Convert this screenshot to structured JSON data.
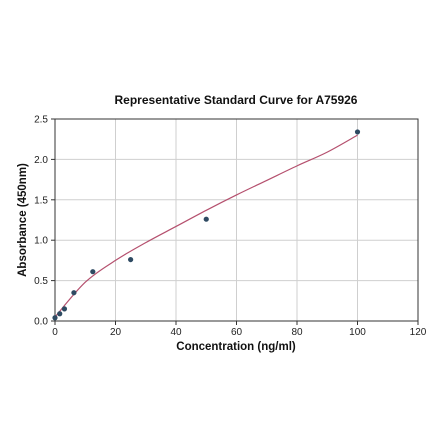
{
  "chart_data": {
    "type": "scatter",
    "title": "Representative Standard Curve for A75926",
    "xlabel": "Concentration (ng/ml)",
    "ylabel": "Absorbance (450nm)",
    "xlim": [
      0,
      120
    ],
    "ylim": [
      0,
      2.5
    ],
    "xticks": [
      "0",
      "20",
      "40",
      "60",
      "80",
      "100",
      "120"
    ],
    "yticks": [
      "0.0",
      "0.5",
      "1.0",
      "1.5",
      "2.0",
      "2.5"
    ],
    "grid": true,
    "legend": "none",
    "series": [
      {
        "kind": "points",
        "color": "#2e4a62",
        "x": [
          0,
          1.563,
          3.125,
          6.25,
          12.5,
          25,
          50,
          100
        ],
        "y": [
          0.04,
          0.09,
          0.15,
          0.35,
          0.61,
          0.76,
          1.26,
          2.34
        ]
      },
      {
        "kind": "fit-curve",
        "color": "#b5506e",
        "x": [
          0,
          10,
          20,
          30,
          40,
          50,
          60,
          70,
          80,
          90,
          100
        ],
        "y": [
          0.05,
          0.48,
          0.75,
          0.97,
          1.17,
          1.37,
          1.56,
          1.74,
          1.92,
          2.09,
          2.3
        ]
      }
    ]
  }
}
